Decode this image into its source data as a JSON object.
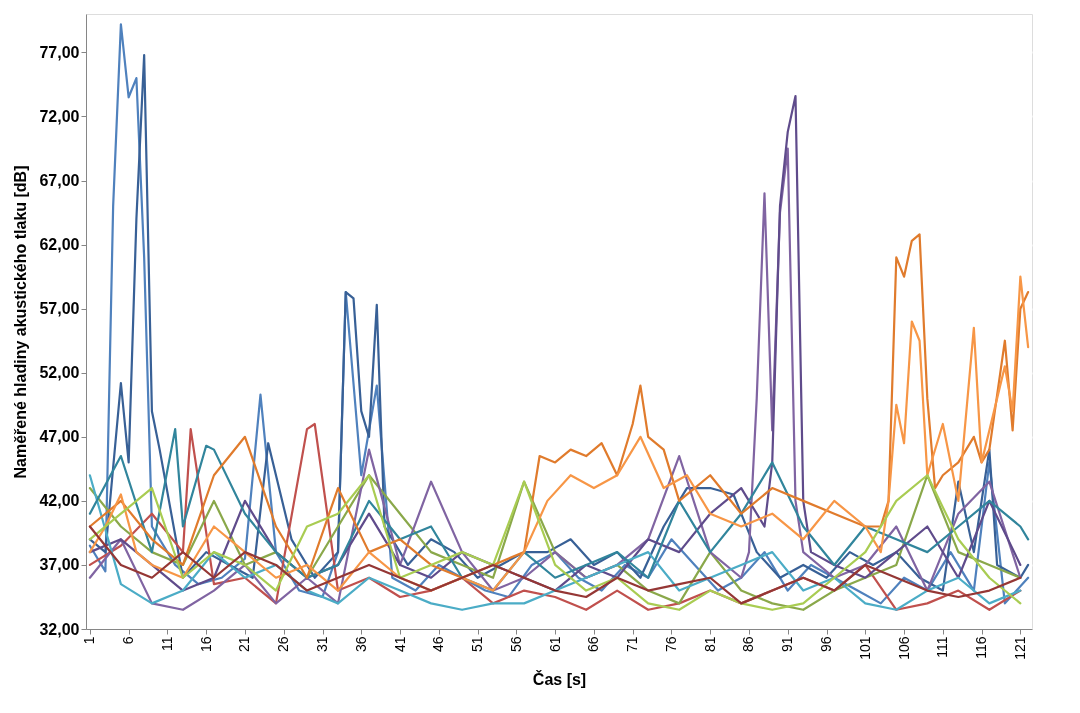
{
  "chart_data": {
    "type": "line",
    "xlabel": "Čas [s]",
    "ylabel": "Naměřené hladiny akustického tlaku [dB]",
    "xlim": [
      0.5,
      122.5
    ],
    "xticks": [
      1,
      6,
      11,
      16,
      21,
      26,
      31,
      36,
      41,
      46,
      51,
      56,
      61,
      66,
      71,
      76,
      81,
      86,
      91,
      96,
      101,
      106,
      111,
      116,
      121
    ],
    "ylim": [
      32,
      80
    ],
    "yticks": [
      {
        "value": 32,
        "label": "32,00"
      },
      {
        "value": 37,
        "label": "37,00"
      },
      {
        "value": 42,
        "label": "42,00"
      },
      {
        "value": 47,
        "label": "47,00"
      },
      {
        "value": 52,
        "label": "52,00"
      },
      {
        "value": 57,
        "label": "57,00"
      },
      {
        "value": 62,
        "label": "62,00"
      },
      {
        "value": 67,
        "label": "67,00"
      },
      {
        "value": 72,
        "label": "72,00"
      },
      {
        "value": 77,
        "label": "77,00"
      }
    ],
    "grid": "y",
    "legend": false,
    "marker": "none",
    "line_style": "solid",
    "series": [
      {
        "color": "#4f81bd",
        "x": [
          1,
          3,
          4,
          5,
          6,
          7,
          8,
          9,
          12,
          15,
          18,
          21,
          23,
          25,
          28,
          31,
          33,
          34,
          36,
          38,
          40,
          43,
          46,
          49,
          52,
          55,
          58,
          61,
          64,
          67,
          70,
          73,
          76,
          79,
          82,
          85,
          88,
          91,
          94,
          97,
          100,
          103,
          106,
          109,
          112,
          115,
          117,
          119,
          122
        ],
        "values": [
          38.5,
          36.5,
          65,
          79.2,
          73.5,
          75,
          61,
          40,
          37,
          35.5,
          36,
          37.5,
          50.3,
          38,
          35,
          34.5,
          38,
          58.3,
          44,
          51,
          36,
          35,
          37,
          36,
          35,
          34.5,
          37,
          38,
          36,
          35,
          37,
          36,
          39,
          37,
          35,
          36,
          38,
          35,
          37,
          36,
          35,
          34,
          36,
          35,
          38,
          35,
          45,
          34,
          36
        ]
      },
      {
        "color": "#386096",
        "x": [
          1,
          3,
          5,
          6,
          7,
          8,
          9,
          10,
          13,
          16,
          19,
          22,
          24,
          27,
          30,
          33,
          34,
          35,
          36,
          37,
          38,
          39,
          42,
          45,
          48,
          51,
          54,
          57,
          60,
          63,
          66,
          69,
          72,
          75,
          78,
          81,
          84,
          87,
          90,
          93,
          96,
          99,
          102,
          105,
          108,
          111,
          113,
          115,
          117,
          118,
          121,
          122
        ],
        "values": [
          39,
          38,
          51.2,
          45,
          64,
          76.8,
          49,
          46,
          36,
          38,
          37,
          36,
          46.5,
          39,
          36,
          38,
          58.3,
          57.8,
          49,
          47,
          57.3,
          40,
          37,
          39,
          38,
          36,
          37,
          38,
          38,
          39,
          37,
          38,
          36,
          40,
          43,
          43,
          42.5,
          38,
          36,
          37,
          36,
          38,
          37,
          38,
          36,
          35,
          43.5,
          38,
          46,
          37,
          36,
          37
        ]
      },
      {
        "color": "#c0504d",
        "x": [
          1,
          5,
          9,
          13,
          14,
          17,
          21,
          25,
          29,
          30,
          33,
          37,
          41,
          45,
          49,
          53,
          57,
          61,
          65,
          69,
          73,
          77,
          81,
          85,
          89,
          93,
          97,
          101,
          105,
          109,
          113,
          117,
          121
        ],
        "values": [
          37,
          38.5,
          41,
          38,
          47.6,
          35.5,
          36,
          34,
          47.6,
          48,
          35,
          36,
          34.5,
          35,
          36,
          34,
          35,
          34.5,
          33.5,
          35,
          33.5,
          34,
          35,
          34,
          35,
          36,
          35,
          37,
          33.5,
          34,
          35,
          33.5,
          35
        ]
      },
      {
        "color": "#8aa84a",
        "x": [
          1,
          5,
          9,
          13,
          17,
          21,
          25,
          29,
          33,
          37,
          41,
          45,
          49,
          53,
          57,
          61,
          65,
          69,
          73,
          77,
          81,
          85,
          89,
          93,
          97,
          101,
          105,
          109,
          113,
          117,
          121
        ],
        "values": [
          43,
          40,
          38,
          37,
          42,
          37,
          38,
          36,
          40,
          44,
          41,
          38,
          37,
          36,
          43.5,
          38,
          36,
          37,
          35,
          34,
          38,
          35,
          34,
          33.5,
          35,
          36,
          37,
          44,
          38,
          37,
          36
        ]
      },
      {
        "color": "#8064a2",
        "x": [
          1,
          5,
          9,
          13,
          17,
          21,
          25,
          29,
          33,
          37,
          41,
          45,
          49,
          53,
          57,
          61,
          65,
          69,
          73,
          77,
          81,
          85,
          86,
          87,
          88,
          89,
          90,
          91,
          92,
          93,
          97,
          101,
          105,
          109,
          113,
          117,
          121
        ],
        "values": [
          36,
          39,
          34,
          33.5,
          35,
          37,
          34,
          36,
          34,
          46,
          37,
          43.5,
          38,
          35,
          36,
          38,
          36,
          37,
          39,
          45.5,
          38,
          36,
          38,
          50,
          66,
          47.5,
          64.5,
          69.5,
          42,
          38,
          36,
          37,
          40,
          35,
          41,
          43.5,
          36
        ]
      },
      {
        "color": "#5f4b8b",
        "x": [
          1,
          5,
          9,
          13,
          17,
          21,
          25,
          29,
          33,
          37,
          41,
          45,
          49,
          53,
          57,
          61,
          65,
          69,
          73,
          77,
          81,
          85,
          88,
          89,
          90,
          91,
          92,
          93,
          94,
          97,
          101,
          105,
          109,
          113,
          117,
          121
        ],
        "values": [
          38,
          39,
          37,
          35,
          36,
          42,
          38,
          36,
          37,
          41,
          37,
          36,
          38,
          37,
          36,
          35,
          37,
          36,
          39,
          38,
          41,
          43,
          40,
          45,
          65,
          70.8,
          73.6,
          42,
          38,
          37,
          36,
          38,
          40,
          36,
          42,
          37
        ]
      },
      {
        "color": "#4bacc6",
        "x": [
          1,
          5,
          9,
          13,
          17,
          21,
          25,
          29,
          33,
          37,
          41,
          45,
          49,
          53,
          57,
          61,
          65,
          69,
          73,
          77,
          81,
          85,
          89,
          93,
          97,
          101,
          105,
          109,
          113,
          117,
          121
        ],
        "values": [
          44,
          35.5,
          34,
          35,
          38,
          36,
          37,
          35,
          34,
          36,
          35,
          34,
          33.5,
          34,
          34,
          35,
          36,
          37,
          38,
          35,
          36,
          37,
          38,
          35,
          36,
          34,
          33.5,
          35,
          36,
          34,
          35
        ]
      },
      {
        "color": "#31859c",
        "x": [
          1,
          5,
          9,
          12,
          13,
          16,
          17,
          21,
          25,
          29,
          33,
          37,
          41,
          45,
          49,
          53,
          57,
          61,
          65,
          69,
          73,
          77,
          81,
          85,
          89,
          93,
          97,
          101,
          105,
          109,
          113,
          117,
          121,
          122
        ],
        "values": [
          41,
          45.5,
          38,
          47.6,
          40,
          46.3,
          46,
          41,
          38,
          36,
          37,
          42,
          39,
          40,
          36,
          35,
          38,
          36,
          37,
          38,
          36,
          42,
          38,
          41,
          45,
          40,
          37,
          40,
          39,
          38,
          40,
          42,
          40,
          39
        ]
      },
      {
        "color": "#e07b2c",
        "x": [
          1,
          5,
          9,
          13,
          17,
          21,
          25,
          29,
          33,
          37,
          41,
          45,
          49,
          53,
          57,
          59,
          61,
          63,
          65,
          67,
          69,
          71,
          72,
          73,
          75,
          77,
          79,
          81,
          85,
          89,
          93,
          97,
          101,
          103,
          104,
          105,
          106,
          107,
          108,
          109,
          110,
          111,
          113,
          115,
          116,
          117,
          119,
          120,
          121,
          122
        ],
        "values": [
          40,
          42,
          39,
          37,
          44,
          47,
          40,
          36,
          43,
          38,
          39,
          37,
          36,
          37,
          38,
          45.5,
          45,
          46,
          45.5,
          46.5,
          44,
          48,
          51,
          47,
          46,
          42,
          43,
          44,
          41,
          43,
          42,
          41,
          40,
          40,
          42,
          61,
          59.5,
          62.3,
          62.8,
          50,
          43,
          44,
          45,
          47,
          45,
          46,
          54.5,
          47.5,
          57,
          58.3
        ]
      },
      {
        "color": "#f79646",
        "x": [
          1,
          3,
          5,
          7,
          9,
          13,
          17,
          21,
          25,
          29,
          33,
          37,
          41,
          45,
          49,
          53,
          57,
          60,
          63,
          66,
          69,
          72,
          75,
          78,
          81,
          85,
          89,
          93,
          97,
          101,
          103,
          104,
          105,
          106,
          107,
          108,
          109,
          111,
          113,
          115,
          116,
          118,
          119,
          120,
          121,
          122
        ],
        "values": [
          38,
          40,
          42.5,
          38,
          37,
          36,
          40,
          38,
          36,
          37,
          35,
          38,
          36,
          35,
          36,
          35,
          38,
          42,
          44,
          43,
          44,
          47,
          43,
          44,
          41,
          40,
          41,
          39,
          42,
          40,
          38,
          42,
          49.5,
          46.5,
          56,
          54.5,
          44,
          48,
          42,
          55.5,
          45,
          50,
          52.5,
          49,
          59.5,
          54
        ]
      },
      {
        "color": "#a9cc52",
        "x": [
          1,
          5,
          9,
          13,
          17,
          21,
          25,
          29,
          33,
          37,
          41,
          45,
          49,
          53,
          57,
          61,
          65,
          69,
          73,
          77,
          81,
          85,
          89,
          93,
          97,
          101,
          105,
          109,
          113,
          117,
          121
        ],
        "values": [
          39,
          41,
          43,
          36,
          38,
          37,
          35,
          40,
          41,
          44,
          36,
          37,
          38,
          37,
          43.5,
          37,
          35,
          36,
          34,
          33.5,
          35,
          34,
          33.5,
          34,
          36,
          38,
          42,
          44,
          39,
          36,
          34
        ]
      },
      {
        "color": "#953735",
        "x": [
          1,
          5,
          9,
          13,
          17,
          21,
          25,
          29,
          33,
          37,
          41,
          45,
          49,
          53,
          57,
          61,
          65,
          69,
          73,
          77,
          81,
          85,
          89,
          93,
          97,
          101,
          105,
          109,
          113,
          117,
          121
        ],
        "values": [
          40,
          37,
          36,
          38,
          36,
          38,
          37,
          35,
          36,
          37,
          36,
          35,
          36,
          37,
          36,
          35,
          34.5,
          36,
          35,
          35.5,
          36,
          34,
          35,
          36,
          35,
          37,
          36,
          35,
          34.5,
          35,
          36
        ]
      }
    ]
  }
}
